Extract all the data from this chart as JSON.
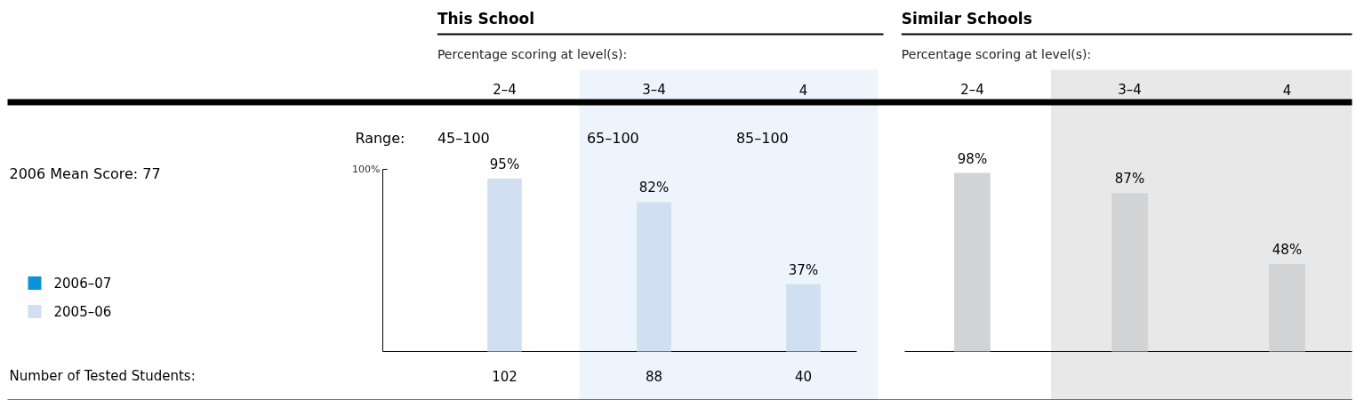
{
  "chart_data": [
    {
      "type": "bar",
      "title": "This School",
      "subtitle": "Percentage scoring at level(s):",
      "categories": [
        "2–4",
        "3–4",
        "4"
      ],
      "series": [
        {
          "name": "2006–07",
          "color": "#0a93d6",
          "values": [
            null,
            null,
            null
          ]
        },
        {
          "name": "2005–06",
          "color": "#d0dff1",
          "values": [
            95,
            82,
            37
          ],
          "value_labels": [
            "95%",
            "82%",
            "37%"
          ]
        }
      ],
      "ylim": [
        0,
        100
      ],
      "yticks": [
        {
          "value": 100,
          "label": "100%"
        }
      ],
      "legend": "left",
      "bands": [
        {
          "axis": "x",
          "from": "3–4",
          "to": "4",
          "color": "#edf4fb"
        }
      ],
      "annotations": [
        "Range:",
        "2006 Mean Score: 77",
        "Number of Tested Students:",
        "45–100",
        "65–100",
        "85–100",
        "102",
        "88",
        "40"
      ]
    },
    {
      "type": "bar",
      "title": "Similar Schools",
      "subtitle": "Percentage scoring at level(s):",
      "categories": [
        "2–4",
        "3–4",
        "4"
      ],
      "series": [
        {
          "color": "#d2d3d5",
          "values": [
            98,
            87,
            48
          ],
          "value_labels": [
            "98%",
            "87%",
            "48%"
          ]
        }
      ],
      "bands": [
        {
          "axis": "x",
          "from": "3–4",
          "to": "4",
          "color": "#e8e8e9"
        }
      ]
    }
  ]
}
